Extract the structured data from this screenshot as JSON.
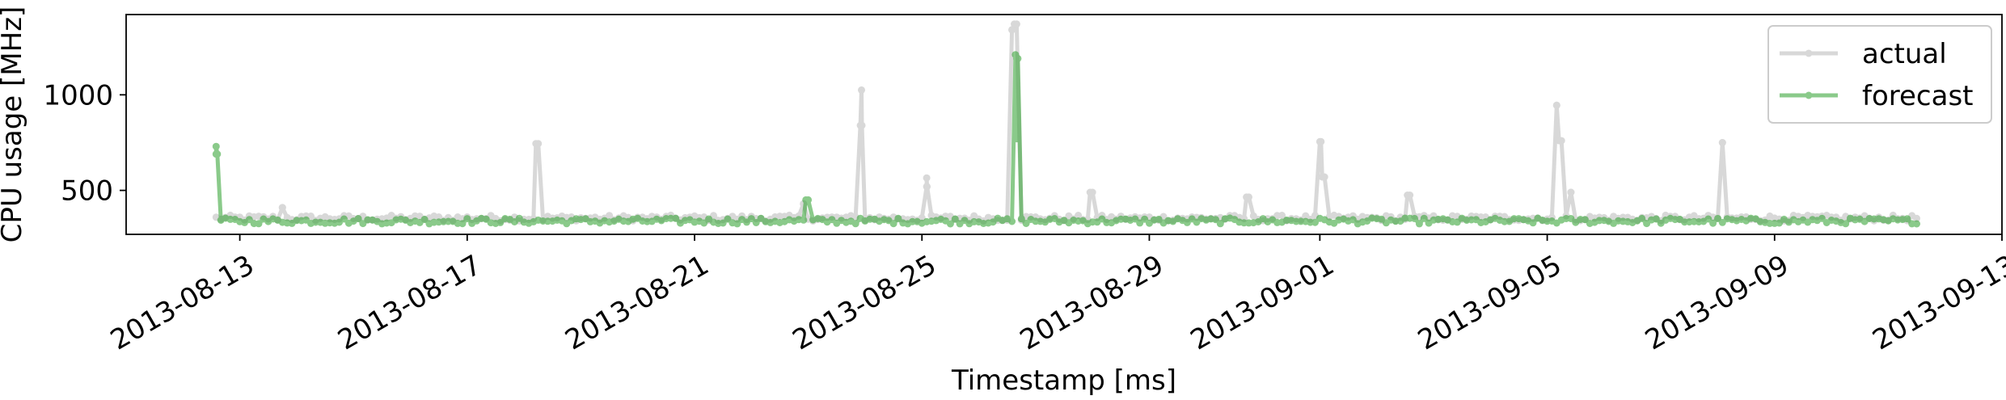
{
  "chart_data": {
    "type": "line",
    "xlabel": "Timestamp [ms]",
    "ylabel": "CPU usage [MHz]",
    "xlim": [
      "2013-08-11",
      "2013-09-13"
    ],
    "ylim": [
      270,
      1420
    ],
    "x_ticks": [
      "2013-08-13",
      "2013-08-17",
      "2013-08-21",
      "2013-08-25",
      "2013-08-29",
      "2013-09-01",
      "2013-09-05",
      "2013-09-09",
      "2013-09-13"
    ],
    "y_ticks": [
      500,
      1000
    ],
    "grid": false,
    "legend_position": "top-right",
    "baseline": {
      "actual": 355,
      "forecast": 340
    },
    "series": [
      {
        "name": "actual",
        "color": "#7f7f7f",
        "alpha": 0.3,
        "spikes": [
          {
            "x": "2013-08-13 18:00",
            "y": 410
          },
          {
            "x": "2013-08-18 05:00",
            "y": 745
          },
          {
            "x": "2013-08-22 22:00",
            "y": 430
          },
          {
            "x": "2013-08-23 22:30",
            "y": 1025
          },
          {
            "x": "2013-08-23 22:40",
            "y": 840
          },
          {
            "x": "2013-08-25 02:00",
            "y": 565
          },
          {
            "x": "2013-08-25 02:10",
            "y": 520
          },
          {
            "x": "2013-08-26 14:00",
            "y": 1340
          },
          {
            "x": "2013-08-26 15:00",
            "y": 1370
          },
          {
            "x": "2013-08-27 23:00",
            "y": 490
          },
          {
            "x": "2013-08-30 17:00",
            "y": 465
          },
          {
            "x": "2013-09-01 00:30",
            "y": 755
          },
          {
            "x": "2013-09-01 01:00",
            "y": 570
          },
          {
            "x": "2013-09-02 13:00",
            "y": 475
          },
          {
            "x": "2013-09-05 04:00",
            "y": 945
          },
          {
            "x": "2013-09-05 05:00",
            "y": 760
          },
          {
            "x": "2013-09-05 10:00",
            "y": 490
          },
          {
            "x": "2013-09-08 02:00",
            "y": 750
          }
        ]
      },
      {
        "name": "forecast",
        "color": "#2ca02c",
        "alpha": 0.55,
        "spikes": [
          {
            "x": "2013-08-12 14:00",
            "y": 730
          },
          {
            "x": "2013-08-12 14:30",
            "y": 690
          },
          {
            "x": "2013-08-22 23:00",
            "y": 450
          },
          {
            "x": "2013-08-26 15:30",
            "y": 1210
          },
          {
            "x": "2013-08-26 16:00",
            "y": 770
          },
          {
            "x": "2013-08-26 16:30",
            "y": 1190
          }
        ]
      }
    ]
  }
}
